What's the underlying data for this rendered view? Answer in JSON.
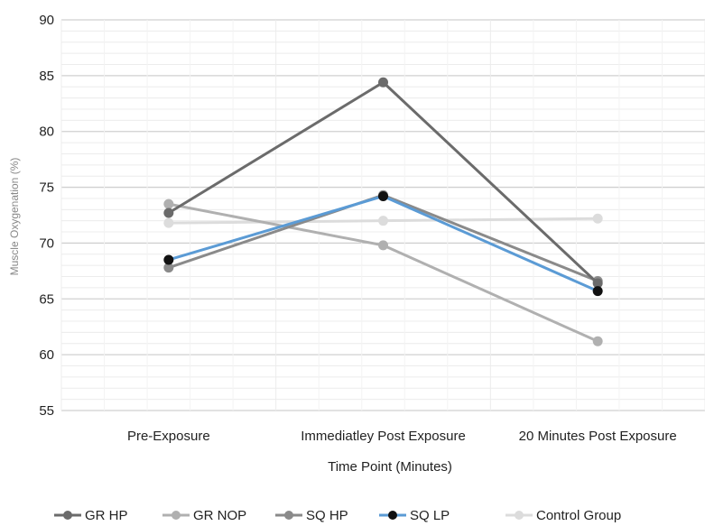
{
  "chart_data": {
    "type": "line",
    "xlabel": "Time Point (Minutes)",
    "ylabel": "Muscle Oxygenation (%)",
    "categories": [
      "Pre-Exposure",
      "Immediatley Post Exposure",
      "20 Minutes Post Exposure"
    ],
    "ylim": [
      55,
      90
    ],
    "yticks": [
      55,
      60,
      65,
      70,
      75,
      80,
      85,
      90
    ],
    "grid": true,
    "legend_position": "bottom",
    "series": [
      {
        "name": "GR HP",
        "values": [
          72.7,
          84.4,
          66.4
        ],
        "color": "#6b6b6b",
        "marker": "#6b6b6b"
      },
      {
        "name": "GR NOP",
        "values": [
          73.5,
          69.8,
          61.2
        ],
        "color": "#b0b0b0",
        "marker": "#b0b0b0"
      },
      {
        "name": "SQ HP",
        "values": [
          67.8,
          74.3,
          66.6
        ],
        "color": "#8a8a8a",
        "marker": "#8a8a8a"
      },
      {
        "name": "SQ LP",
        "values": [
          68.5,
          74.2,
          65.7
        ],
        "color": "#5b9bd5",
        "marker": "#111111"
      },
      {
        "name": "Control Group",
        "values": [
          71.8,
          72.0,
          72.2
        ],
        "color": "#dcdcdc",
        "marker": "#dcdcdc"
      }
    ]
  }
}
